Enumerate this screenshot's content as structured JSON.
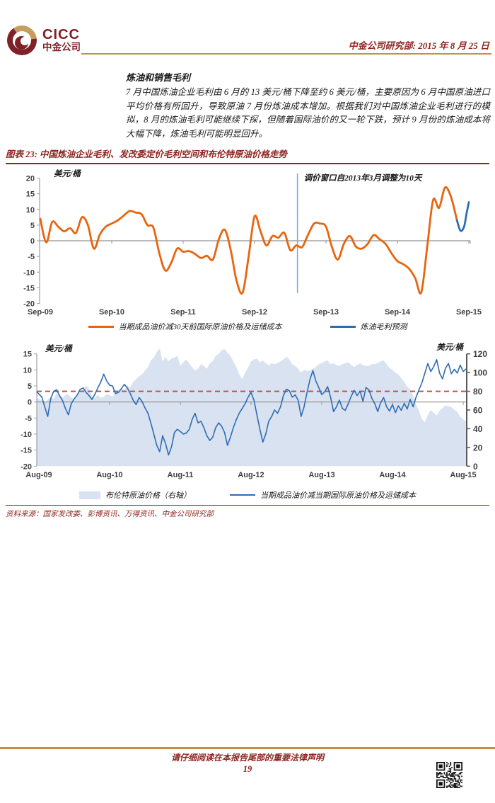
{
  "header": {
    "brand_acronym": "CICC",
    "brand_name": "中金公司",
    "right_text": "中金公司研究部: 2015 年 8 月 25 日"
  },
  "article": {
    "section_title": "炼油和销售毛利",
    "paragraph": "7 月中国炼油企业毛利由 6 月的 13 美元/桶下降至约 6 美元/桶，主要原因为 6 月中国原油进口平均价格有所回升，导致原油 7 月份炼油成本增加。根据我们对中国炼油企业毛利进行的模拟，8 月的炼油毛利可能继续下探，但随着国际油价的又一轮下跌，预计 9 月份的炼油成本将大幅下降，炼油毛利可能明显回升。"
  },
  "figure": {
    "caption": "图表 23:  中国炼油企业毛利、发改委定价毛利空间和布伦特原油价格走势",
    "source": "资料来源：国家发改委、彭博资讯、万得资讯、中金公司研究部"
  },
  "chart_data": [
    {
      "type": "line",
      "ylabel": "美元/桶",
      "ylim": [
        -20,
        20
      ],
      "yticks": [
        20,
        15,
        10,
        5,
        0,
        -5,
        -10,
        -15,
        -20
      ],
      "x_tick_labels": [
        "Sep-09",
        "Sep-10",
        "Sep-11",
        "Sep-12",
        "Sep-13",
        "Sep-14",
        "Sep-15"
      ],
      "x_unit": "months since Sep-2009",
      "grid": false,
      "legend_position": "bottom",
      "annotation": {
        "text": "调价窗口自2013年3月调整为10天",
        "x_month": 43.2,
        "line_color": "#7EA6D8"
      },
      "series": [
        {
          "name": "当期成品油价减30天前国际原油价格及运储成本",
          "color": "#E8650E",
          "x_start": 0,
          "x_step": 1,
          "values": [
            7,
            -0.5,
            6,
            4.5,
            3,
            4,
            2.5,
            7.5,
            5,
            -2.5,
            2,
            4.5,
            5.5,
            6.5,
            8,
            9.5,
            9,
            8.5,
            5,
            4.2,
            -4,
            -9.5,
            -7,
            -2.5,
            -3.5,
            -3.3,
            -4.2,
            -5.5,
            -4.8,
            -6,
            0.5,
            3.5,
            -3,
            -13,
            -16.5,
            -5,
            7.8,
            3,
            -1.5,
            1.5,
            1,
            2.5,
            -3,
            -1.5,
            -2,
            2,
            5.5,
            5.5,
            4.5,
            -2,
            -6,
            -1,
            1.5,
            -1.8,
            -2.5,
            -1,
            1.8,
            0.5,
            -1,
            -4,
            -6.5,
            -7.5,
            -9,
            -12,
            -16.5,
            -2,
            13,
            10.5,
            17,
            14,
            6.5
          ]
        },
        {
          "name": "炼油毛利预测",
          "color": "#2E6DB4",
          "x": [
            70,
            70.6,
            71.2,
            71.6,
            72
          ],
          "values": [
            6.5,
            3.2,
            4.5,
            8.5,
            12.3
          ]
        }
      ]
    },
    {
      "type": "area+line",
      "left_ylabel": "美元/桶",
      "right_ylabel": "美元/桶",
      "left_ylim": [
        -20,
        15
      ],
      "right_ylim": [
        0,
        120
      ],
      "left_yticks": [
        15,
        10,
        5,
        0,
        -5,
        -10,
        -15,
        -20
      ],
      "right_yticks": [
        120,
        100,
        80,
        60,
        40,
        20,
        0
      ],
      "x_tick_labels": [
        "Aug-09",
        "Aug-10",
        "Aug-11",
        "Aug-12",
        "Aug-13",
        "Aug-14",
        "Aug-15"
      ],
      "x_unit": "months since Aug-2009",
      "reference_line": {
        "axis": "right",
        "value": 80,
        "style": "dashed",
        "color": "#C0504D"
      },
      "series": [
        {
          "name": "布伦特原油价格（右轴）",
          "type": "area",
          "axis": "right",
          "color": "#D9E2F1",
          "x_start": 0,
          "x_step": 0.5,
          "values": [
            73,
            70,
            68,
            71,
            74,
            72,
            78,
            75,
            73,
            76,
            77,
            73,
            72,
            76,
            80,
            82,
            86,
            83,
            75,
            73,
            76,
            73,
            74,
            77,
            76,
            74,
            79,
            81,
            83,
            82,
            86,
            84,
            90,
            93,
            96,
            98,
            102,
            106,
            113,
            116,
            122,
            125.5,
            112,
            117,
            112,
            115,
            116,
            118,
            107,
            111,
            114,
            110,
            106,
            102,
            104,
            109,
            107,
            104,
            110,
            112,
            118,
            120,
            124,
            125,
            121,
            118,
            112,
            106,
            98,
            93,
            100,
            105,
            112,
            114,
            115,
            111,
            113,
            110,
            108,
            110,
            109,
            110,
            112,
            114,
            117,
            114,
            109,
            107,
            104,
            100,
            103,
            102,
            102,
            104,
            106,
            109,
            110,
            112,
            113,
            109,
            110,
            108,
            107,
            109,
            110,
            111,
            108,
            106,
            108,
            110,
            108,
            107,
            107,
            109,
            109,
            110,
            112,
            113,
            109,
            105,
            103,
            100,
            98,
            94,
            90,
            85,
            82,
            75,
            66,
            59,
            50,
            47,
            55,
            60,
            57,
            54,
            59,
            62,
            65,
            64,
            63,
            60,
            58,
            53,
            50,
            48
          ]
        },
        {
          "name": "当期成品油价减当期国际原油价格及运储成本",
          "type": "line",
          "axis": "left",
          "color": "#2E6DB4",
          "x_start": 0,
          "x_step": 0.5,
          "values": [
            3.2,
            1.5,
            -1.5,
            -4.5,
            1.0,
            3.3,
            3.8,
            2.0,
            0.5,
            -2.0,
            -4.0,
            -0.5,
            1.0,
            2.2,
            3.9,
            4.4,
            3.0,
            2.0,
            0.8,
            2.4,
            4.4,
            6.2,
            8.7,
            6.6,
            5.2,
            5.0,
            2.6,
            3.0,
            4.2,
            5.5,
            4.4,
            2.6,
            0.6,
            -0.8,
            1.4,
            0.2,
            -1.8,
            -3.5,
            -6.5,
            -10.0,
            -13.5,
            -15.5,
            -10.5,
            -13.0,
            -16.5,
            -14.0,
            -9.5,
            -8.5,
            -9.2,
            -10.0,
            -9.7,
            -8.6,
            -5.5,
            -3.5,
            -6.5,
            -6.0,
            -8.0,
            -10.5,
            -12.0,
            -11.0,
            -8.0,
            -6.5,
            -7.5,
            -9.5,
            -13.5,
            -11.0,
            -8.0,
            -5.5,
            -3.5,
            -2.0,
            -0.5,
            1.5,
            3.0,
            0.5,
            -4.0,
            -8.5,
            -12.5,
            -10.0,
            -6.0,
            -4.5,
            -2.5,
            -3.5,
            -1.5,
            2.0,
            4.0,
            3.5,
            1.5,
            2.2,
            0.5,
            -4.5,
            -1.5,
            3.0,
            7.0,
            9.8,
            6.5,
            4.5,
            2.3,
            3.2,
            4.8,
            1.5,
            -3.0,
            -1.5,
            0.6,
            -2.0,
            -2.6,
            -0.5,
            1.8,
            3.6,
            2.0,
            3.4,
            0.2,
            4.5,
            3.8,
            1.2,
            -0.5,
            -3.0,
            -0.2,
            1.4,
            -1.5,
            -2.8,
            -0.8,
            -3.3,
            -1.2,
            -2.6,
            -0.4,
            -2.2,
            0.8,
            -1.5,
            1.5,
            3.8,
            6.0,
            9.0,
            12.0,
            9.5,
            11.0,
            13.2,
            9.0,
            7.2,
            10.5,
            12.0,
            8.8,
            10.2,
            9.0,
            11.5,
            9.5,
            10.3
          ]
        }
      ]
    }
  ],
  "footer": {
    "legal": "请仔细阅读在本报告尾部的重要法律声明",
    "page_number": "19"
  }
}
